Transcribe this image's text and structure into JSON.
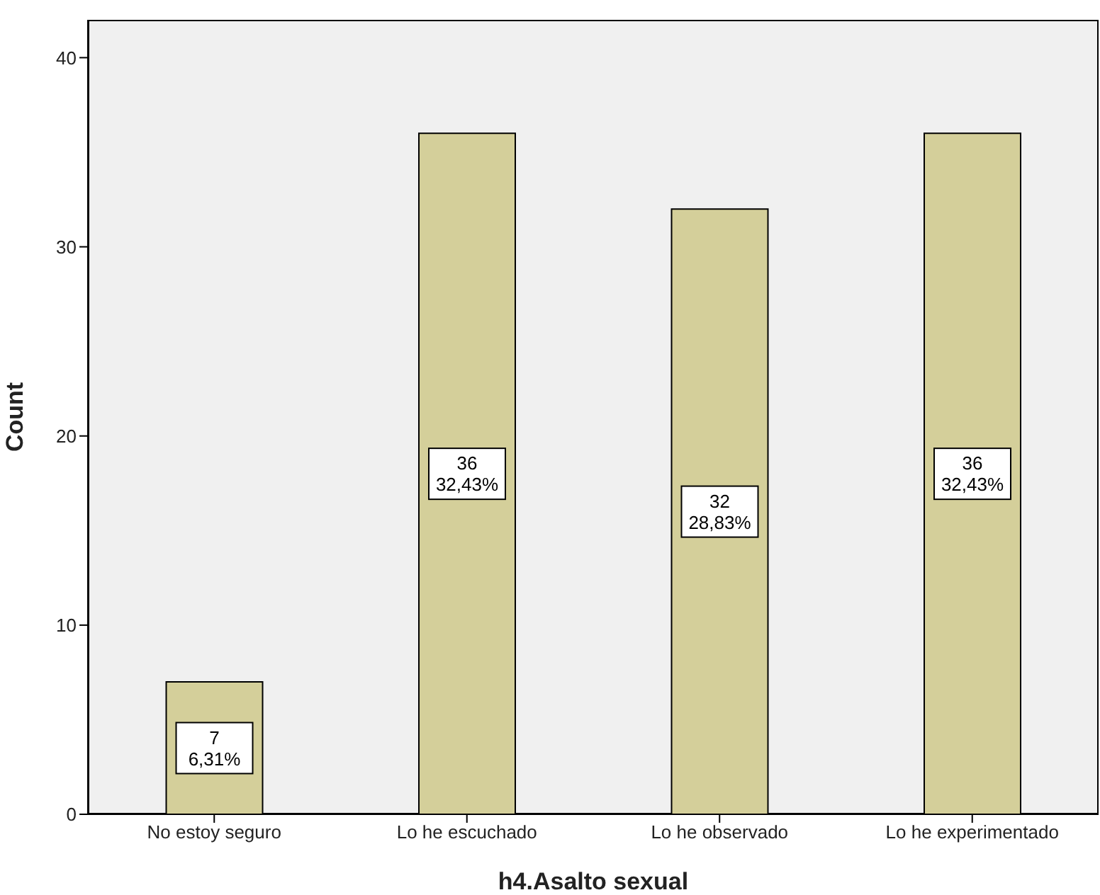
{
  "chart_data": {
    "type": "bar",
    "xlabel": "h4.Asalto sexual",
    "ylabel": "Count",
    "categories": [
      "No estoy seguro",
      "Lo he escuchado",
      "Lo he observado",
      "Lo he experimentado"
    ],
    "values": [
      7,
      36,
      32,
      36
    ],
    "value_labels": [
      "7\n6,31%",
      "36\n32,43%",
      "32\n28,83%",
      "36\n32,43%"
    ],
    "color": "#d4cf9a",
    "ylim": [
      0,
      42
    ],
    "yticks": [
      0,
      10,
      20,
      30,
      40
    ]
  }
}
